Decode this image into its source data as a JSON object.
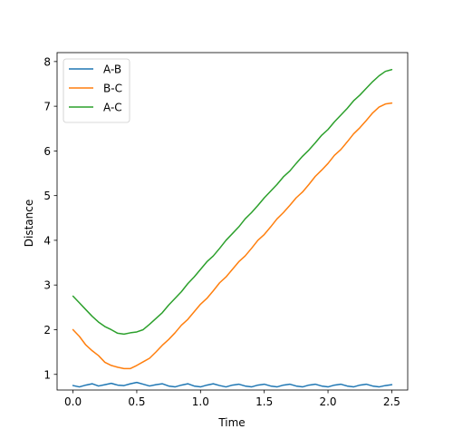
{
  "chart_data": {
    "type": "line",
    "title": "",
    "xlabel": "Time",
    "ylabel": "Distance",
    "xlim": [
      -0.125,
      2.625
    ],
    "ylim": [
      0.65,
      8.2
    ],
    "xticks": [
      0.0,
      0.5,
      1.0,
      1.5,
      2.0,
      2.5
    ],
    "xtick_labels": [
      "0.0",
      "0.5",
      "1.0",
      "1.5",
      "2.0",
      "2.5"
    ],
    "yticks": [
      1,
      2,
      3,
      4,
      5,
      6,
      7,
      8
    ],
    "ytick_labels": [
      "1",
      "2",
      "3",
      "4",
      "5",
      "6",
      "7",
      "8"
    ],
    "grid": false,
    "legend_position": "top-left",
    "series": [
      {
        "name": "A-B",
        "color": "#1f77b4",
        "x": [
          0.0,
          0.05,
          0.1,
          0.15,
          0.2,
          0.25,
          0.3,
          0.35,
          0.4,
          0.45,
          0.5,
          0.55,
          0.6,
          0.65,
          0.7,
          0.75,
          0.8,
          0.85,
          0.9,
          0.95,
          1.0,
          1.05,
          1.1,
          1.15,
          1.2,
          1.25,
          1.3,
          1.35,
          1.4,
          1.45,
          1.5,
          1.55,
          1.6,
          1.65,
          1.7,
          1.75,
          1.8,
          1.85,
          1.9,
          1.95,
          2.0,
          2.05,
          2.1,
          2.15,
          2.2,
          2.25,
          2.3,
          2.35,
          2.4,
          2.45,
          2.5
        ],
        "y": [
          0.75,
          0.72,
          0.76,
          0.79,
          0.74,
          0.77,
          0.8,
          0.76,
          0.75,
          0.79,
          0.82,
          0.78,
          0.74,
          0.77,
          0.79,
          0.74,
          0.72,
          0.76,
          0.79,
          0.74,
          0.72,
          0.76,
          0.79,
          0.75,
          0.72,
          0.76,
          0.78,
          0.74,
          0.72,
          0.76,
          0.78,
          0.74,
          0.72,
          0.76,
          0.78,
          0.74,
          0.72,
          0.76,
          0.78,
          0.74,
          0.72,
          0.76,
          0.78,
          0.74,
          0.72,
          0.76,
          0.78,
          0.74,
          0.72,
          0.75,
          0.77
        ]
      },
      {
        "name": "B-C",
        "color": "#ff7f0e",
        "x": [
          0.0,
          0.05,
          0.1,
          0.15,
          0.2,
          0.25,
          0.3,
          0.35,
          0.4,
          0.45,
          0.5,
          0.55,
          0.6,
          0.65,
          0.7,
          0.75,
          0.8,
          0.85,
          0.9,
          0.95,
          1.0,
          1.05,
          1.1,
          1.15,
          1.2,
          1.25,
          1.3,
          1.35,
          1.4,
          1.45,
          1.5,
          1.55,
          1.6,
          1.65,
          1.7,
          1.75,
          1.8,
          1.85,
          1.9,
          1.95,
          2.0,
          2.05,
          2.1,
          2.15,
          2.2,
          2.25,
          2.3,
          2.35,
          2.4,
          2.45,
          2.5
        ],
        "y": [
          2.0,
          1.85,
          1.66,
          1.53,
          1.42,
          1.27,
          1.2,
          1.16,
          1.13,
          1.13,
          1.2,
          1.28,
          1.36,
          1.5,
          1.65,
          1.78,
          1.93,
          2.1,
          2.23,
          2.4,
          2.57,
          2.7,
          2.87,
          3.05,
          3.18,
          3.35,
          3.52,
          3.65,
          3.82,
          4.0,
          4.13,
          4.3,
          4.48,
          4.62,
          4.78,
          4.95,
          5.08,
          5.25,
          5.43,
          5.57,
          5.72,
          5.9,
          6.03,
          6.2,
          6.38,
          6.52,
          6.68,
          6.85,
          6.98,
          7.05,
          7.07
        ]
      },
      {
        "name": "A-C",
        "color": "#2ca02c",
        "x": [
          0.0,
          0.05,
          0.1,
          0.15,
          0.2,
          0.25,
          0.3,
          0.35,
          0.4,
          0.45,
          0.5,
          0.55,
          0.6,
          0.65,
          0.7,
          0.75,
          0.8,
          0.85,
          0.9,
          0.95,
          1.0,
          1.05,
          1.1,
          1.15,
          1.2,
          1.25,
          1.3,
          1.35,
          1.4,
          1.45,
          1.5,
          1.55,
          1.6,
          1.65,
          1.7,
          1.75,
          1.8,
          1.85,
          1.9,
          1.95,
          2.0,
          2.05,
          2.1,
          2.15,
          2.2,
          2.25,
          2.3,
          2.35,
          2.4,
          2.45,
          2.5
        ],
        "y": [
          2.75,
          2.6,
          2.45,
          2.3,
          2.17,
          2.07,
          2.0,
          1.92,
          1.9,
          1.93,
          1.95,
          2.0,
          2.12,
          2.25,
          2.38,
          2.55,
          2.7,
          2.85,
          3.03,
          3.18,
          3.35,
          3.52,
          3.65,
          3.82,
          4.0,
          4.15,
          4.3,
          4.48,
          4.62,
          4.78,
          4.95,
          5.1,
          5.25,
          5.42,
          5.55,
          5.72,
          5.88,
          6.02,
          6.18,
          6.35,
          6.48,
          6.65,
          6.8,
          6.95,
          7.12,
          7.25,
          7.4,
          7.55,
          7.68,
          7.78,
          7.82
        ]
      }
    ]
  }
}
